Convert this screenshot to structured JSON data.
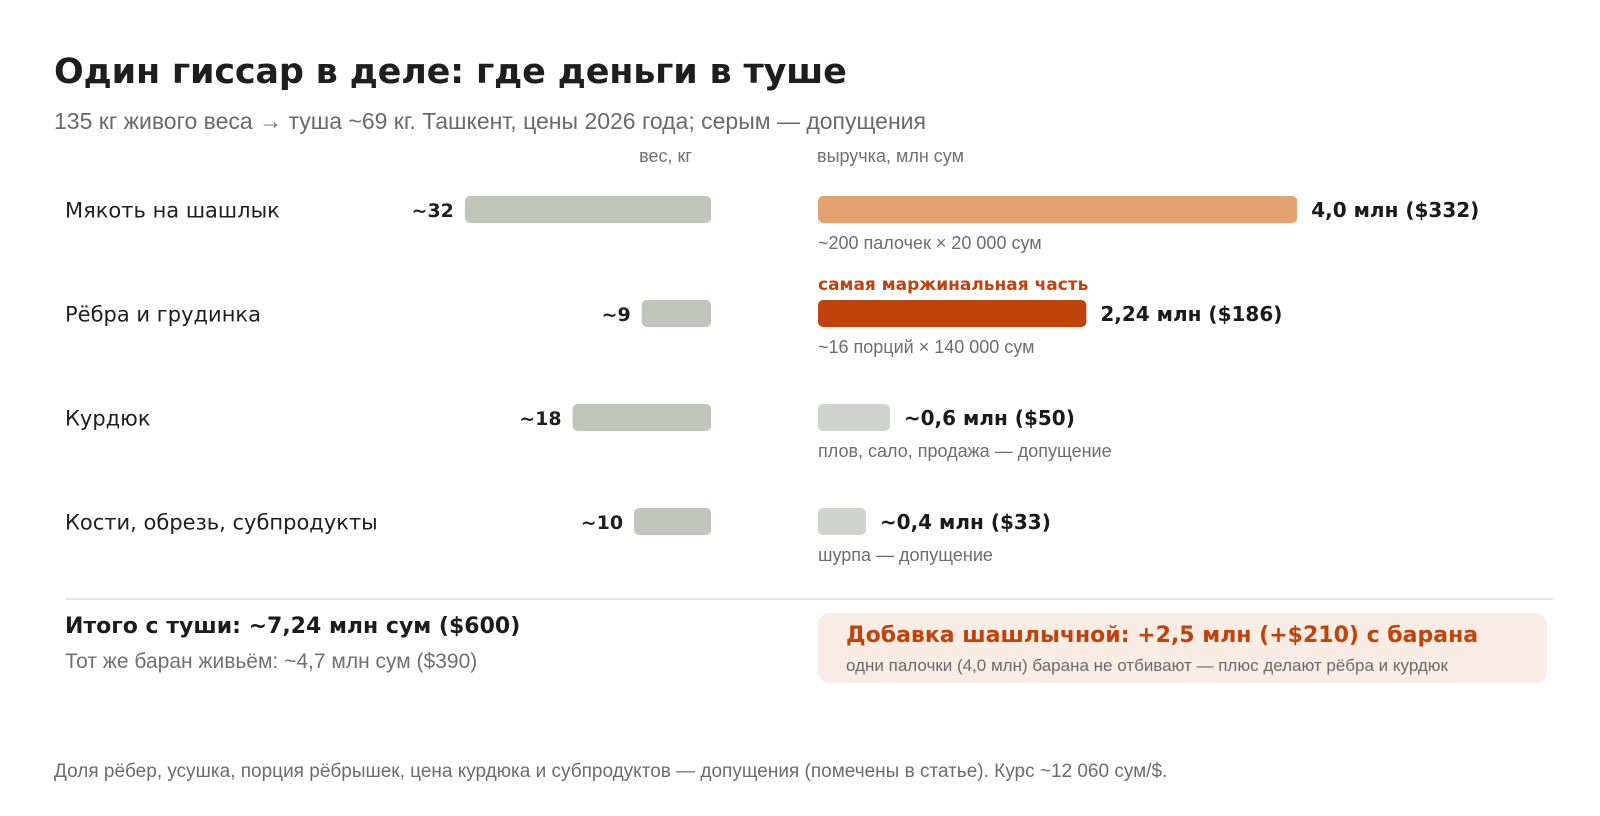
{
  "title": "Один гиссар в деле: где деньги в туше",
  "subtitle": "135 кг живого веса → туша ~69 кг. Ташкент, цены 2026 года; серым — допущения",
  "colors": {
    "weight_bar": "#c1c4b8",
    "revenue_main": "#e3a270",
    "revenue_accent": "#c0430c",
    "revenue_assumed": "#cfd2cd",
    "accent_text": "#c0430c",
    "callout_bg": "#f8ece4"
  },
  "chart_data": {
    "type": "bar",
    "weight_axis_label": "вес, кг",
    "revenue_axis_label": "выручка, млн сум",
    "categories": [
      "Мякоть на шашлык",
      "Рёбра и грудинка",
      "Курдюк",
      "Кости, обрезь, субпродукты"
    ],
    "series": [
      {
        "name": "вес, кг",
        "values": [
          32,
          9,
          18,
          10
        ],
        "labels": [
          "~32",
          "~9",
          "~18",
          "~10"
        ]
      },
      {
        "name": "выручка, млн сум",
        "values": [
          4.0,
          2.24,
          0.6,
          0.4
        ],
        "labels": [
          "4,0 млн ($332)",
          "2,24 млн ($186)",
          "~0,6 млн ($50)",
          "~0,4 млн ($33)"
        ],
        "notes": [
          "~200 палочек × 20 000 сум",
          "~16 порций × 140 000 сум",
          "плов, сало, продажа — допущение",
          "шурпа — допущение"
        ],
        "flags": [
          "",
          "самая маржинальная часть",
          "",
          ""
        ],
        "styles": [
          "main",
          "accent",
          "assumed",
          "assumed"
        ]
      }
    ]
  },
  "totals": {
    "title": "Итого с туши: ~7,24 млн сум ($600)",
    "note": "Тот же баран живьём: ~4,7 млн сум ($390)"
  },
  "callout": {
    "title": "Добавка шашлычной: +2,5 млн (+$210) с барана",
    "note": "одни палочки (4,0 млн) барана не отбивают — плюс делают рёбра и курдюк"
  },
  "footnote": "Доля рёбер, усушка, порция рёбрышек, цена курдюка и субпродуктов — допущения (помечены в статье). Курс ~12 060 сум/$."
}
